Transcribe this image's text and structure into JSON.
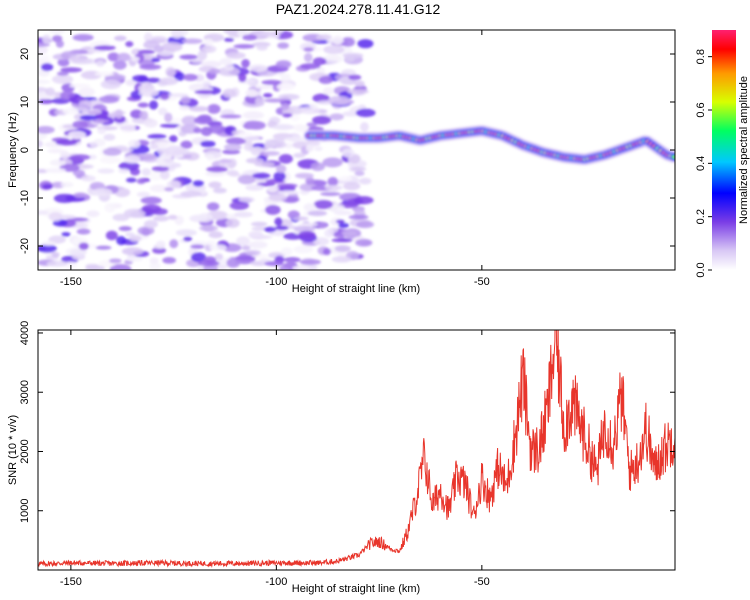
{
  "title": "PAZ1.2024.278.11.41.G12",
  "chart_data": [
    {
      "type": "heatmap",
      "name": "spectrogram",
      "xlabel": "Height of straight line (km)",
      "ylabel": "Frequency (Hz)",
      "xlim": [
        -158,
        -3
      ],
      "ylim": [
        -25,
        25
      ],
      "xticks": [
        -150,
        -100,
        -50
      ],
      "yticks": [
        -20,
        -10,
        0,
        10,
        20
      ],
      "colorbar": {
        "label": "Normalized spectral amplitude",
        "range": [
          0,
          0.9
        ],
        "ticks": [
          0.0,
          0.2,
          0.4,
          0.6,
          0.8
        ],
        "colors": [
          "#ffffff",
          "#d9c8f5",
          "#7a3de6",
          "#0000ff",
          "#00c8ff",
          "#00ff60",
          "#d8ff00",
          "#ff9900",
          "#ff0000",
          "#ff2070"
        ]
      },
      "noise_region_x": [
        -158,
        -78
      ],
      "ridge": {
        "x": [
          -92,
          -86,
          -80,
          -75,
          -70,
          -65,
          -60,
          -55,
          -50,
          -45,
          -40,
          -35,
          -30,
          -25,
          -20,
          -15,
          -10,
          -5,
          -3
        ],
        "y": [
          3,
          3,
          2.5,
          2.5,
          3,
          2,
          3,
          3.5,
          4,
          3,
          1,
          -0.5,
          -1.5,
          -2,
          -1,
          0.5,
          2,
          -1,
          -1.5
        ]
      }
    },
    {
      "type": "line",
      "name": "snr",
      "xlabel": "Height of straight line (km)",
      "ylabel": "SNR (10 * v/v)",
      "xlim": [
        -158,
        -3
      ],
      "ylim": [
        0,
        4050
      ],
      "xticks": [
        -150,
        -100,
        -50
      ],
      "yticks": [
        1000,
        2000,
        3000,
        4000
      ],
      "color": "#e8352b",
      "series": [
        {
          "x": [
            -158,
            -150,
            -140,
            -130,
            -120,
            -110,
            -100,
            -90,
            -85,
            -80,
            -77,
            -75,
            -72,
            -70,
            -68,
            -66,
            -64,
            -62,
            -60,
            -58,
            -56,
            -54,
            -52,
            -50,
            -48,
            -46,
            -44,
            -42,
            -40,
            -38,
            -36,
            -34,
            -32,
            -30,
            -28,
            -26,
            -24,
            -22,
            -20,
            -18,
            -16,
            -14,
            -12,
            -10,
            -8,
            -6,
            -3
          ],
          "y": [
            100,
            120,
            110,
            120,
            110,
            110,
            120,
            120,
            150,
            250,
            450,
            480,
            350,
            320,
            650,
            1200,
            1900,
            1100,
            1350,
            1000,
            1600,
            1450,
            900,
            1550,
            1200,
            1750,
            1400,
            2200,
            3250,
            2000,
            2050,
            2700,
            4000,
            2400,
            2850,
            2450,
            2050,
            1650,
            2500,
            2100,
            2950,
            1650,
            1850,
            2400,
            1700,
            2000,
            2300
          ]
        }
      ]
    }
  ]
}
